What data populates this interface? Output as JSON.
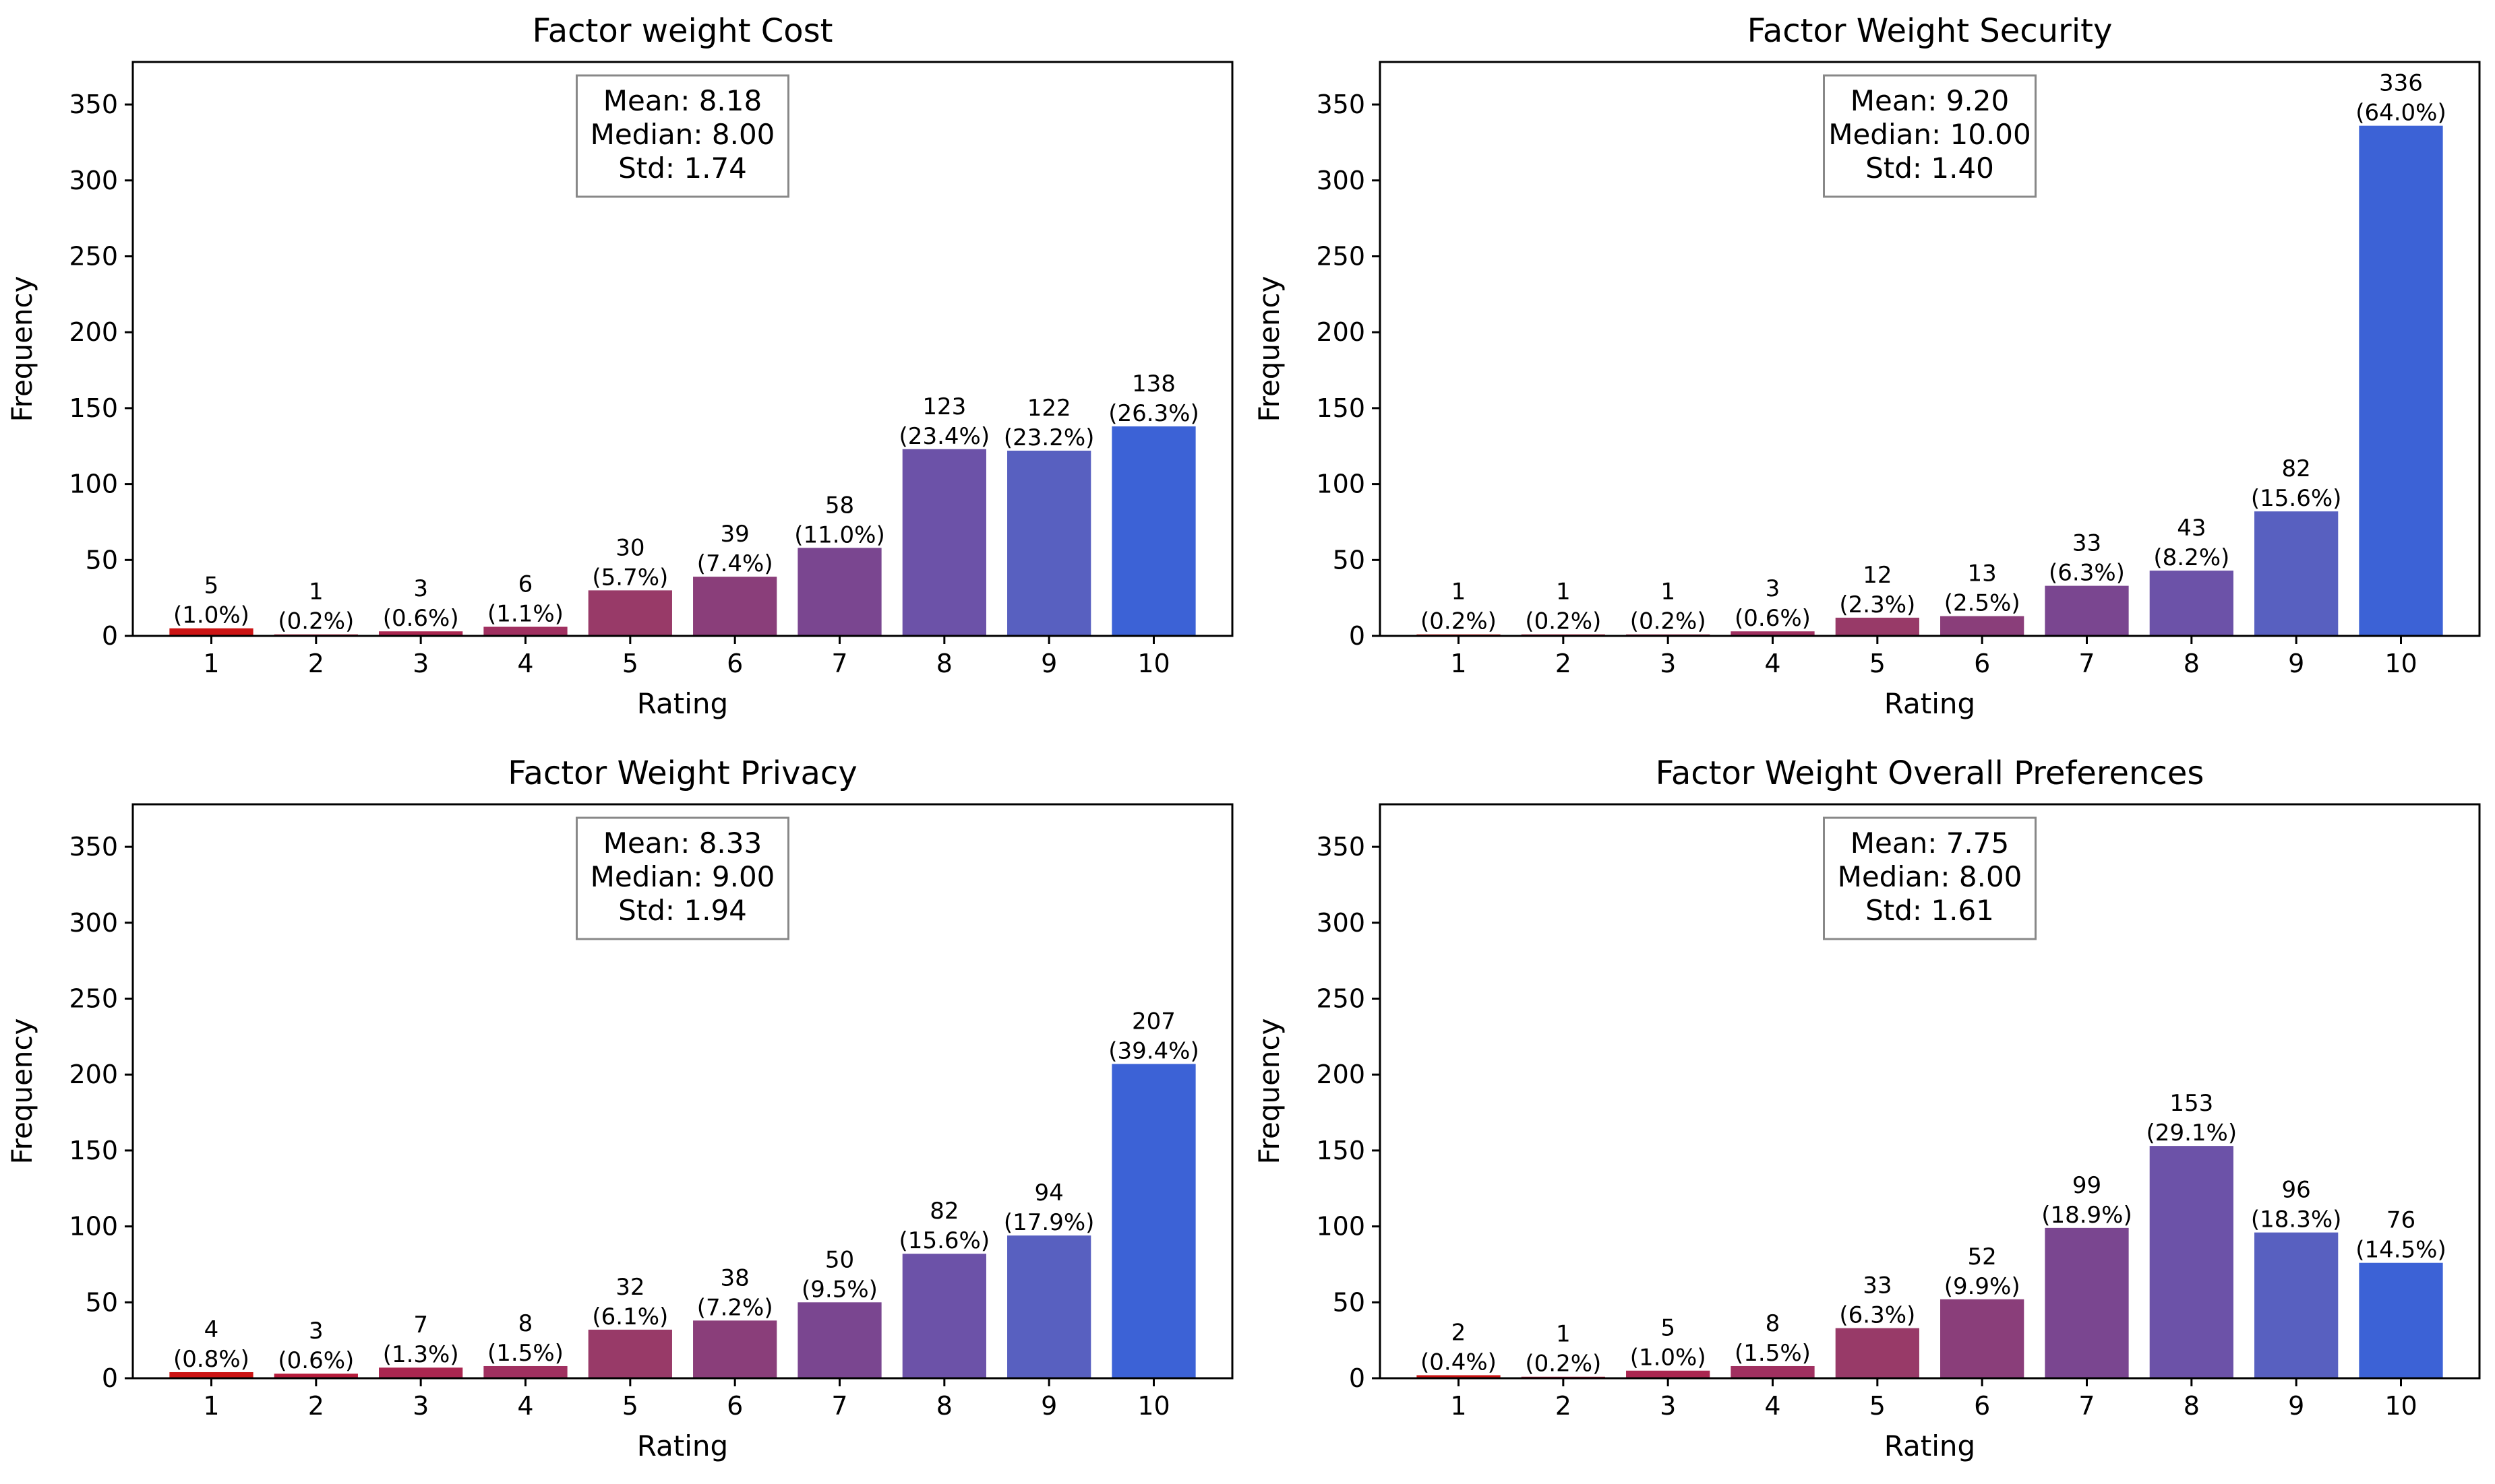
{
  "chart_data": [
    {
      "type": "bar",
      "title": "Factor weight Cost",
      "xlabel": "Rating",
      "ylabel": "Frequency",
      "categories": [
        "1",
        "2",
        "3",
        "4",
        "5",
        "6",
        "7",
        "8",
        "9",
        "10"
      ],
      "values": [
        5,
        1,
        3,
        6,
        30,
        39,
        58,
        123,
        122,
        138
      ],
      "percent_labels": [
        "(1.0%)",
        "(0.2%)",
        "(0.6%)",
        "(1.1%)",
        "(5.7%)",
        "(7.4%)",
        "(11.0%)",
        "(23.4%)",
        "(23.2%)",
        "(26.3%)"
      ],
      "stats": [
        "Mean: 8.18",
        "Median: 8.00",
        "Std: 1.74"
      ],
      "ylim": [
        0,
        378
      ],
      "yticks": [
        0,
        50,
        100,
        150,
        200,
        250,
        300,
        350
      ],
      "grid": false
    },
    {
      "type": "bar",
      "title": "Factor Weight Security",
      "xlabel": "Rating",
      "ylabel": "Frequency",
      "categories": [
        "1",
        "2",
        "3",
        "4",
        "5",
        "6",
        "7",
        "8",
        "9",
        "10"
      ],
      "values": [
        1,
        1,
        1,
        3,
        12,
        13,
        33,
        43,
        82,
        336
      ],
      "percent_labels": [
        "(0.2%)",
        "(0.2%)",
        "(0.2%)",
        "(0.6%)",
        "(2.3%)",
        "(2.5%)",
        "(6.3%)",
        "(8.2%)",
        "(15.6%)",
        "(64.0%)"
      ],
      "stats": [
        "Mean: 9.20",
        "Median: 10.00",
        "Std: 1.40"
      ],
      "ylim": [
        0,
        378
      ],
      "yticks": [
        0,
        50,
        100,
        150,
        200,
        250,
        300,
        350
      ],
      "grid": false
    },
    {
      "type": "bar",
      "title": "Factor Weight Privacy",
      "xlabel": "Rating",
      "ylabel": "Frequency",
      "categories": [
        "1",
        "2",
        "3",
        "4",
        "5",
        "6",
        "7",
        "8",
        "9",
        "10"
      ],
      "values": [
        4,
        3,
        7,
        8,
        32,
        38,
        50,
        82,
        94,
        207
      ],
      "percent_labels": [
        "(0.8%)",
        "(0.6%)",
        "(1.3%)",
        "(1.5%)",
        "(6.1%)",
        "(7.2%)",
        "(9.5%)",
        "(15.6%)",
        "(17.9%)",
        "(39.4%)"
      ],
      "stats": [
        "Mean: 8.33",
        "Median: 9.00",
        "Std: 1.94"
      ],
      "ylim": [
        0,
        378
      ],
      "yticks": [
        0,
        50,
        100,
        150,
        200,
        250,
        300,
        350
      ],
      "grid": false
    },
    {
      "type": "bar",
      "title": "Factor Weight Overall Preferences",
      "xlabel": "Rating",
      "ylabel": "Frequency",
      "categories": [
        "1",
        "2",
        "3",
        "4",
        "5",
        "6",
        "7",
        "8",
        "9",
        "10"
      ],
      "values": [
        2,
        1,
        5,
        8,
        33,
        52,
        99,
        153,
        96,
        76
      ],
      "percent_labels": [
        "(0.4%)",
        "(0.2%)",
        "(1.0%)",
        "(1.5%)",
        "(6.3%)",
        "(9.9%)",
        "(18.9%)",
        "(29.1%)",
        "(18.3%)",
        "(14.5%)"
      ],
      "stats": [
        "Mean: 7.75",
        "Median: 8.00",
        "Std: 1.61"
      ],
      "ylim": [
        0,
        378
      ],
      "yticks": [
        0,
        50,
        100,
        150,
        200,
        250,
        300,
        350
      ],
      "grid": false
    }
  ],
  "colors": {
    "bars": [
      "#cc1414",
      "#b71c3c",
      "#aa2650",
      "#a03060",
      "#983a68",
      "#8a3e7a",
      "#7a4690",
      "#6c52a8",
      "#5860c0",
      "#3c62d6"
    ],
    "axes": "#000000",
    "stats_border": "#888888"
  }
}
